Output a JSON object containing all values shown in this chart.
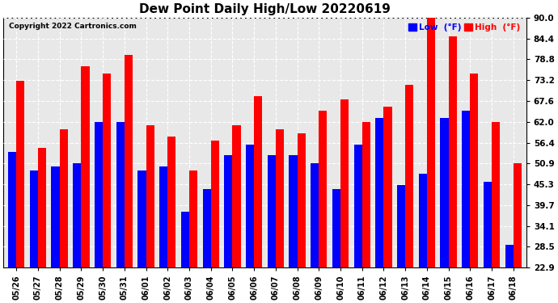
{
  "title": "Dew Point Daily High/Low 20220619",
  "copyright": "Copyright 2022 Cartronics.com",
  "legend_low": "Low  (°F)",
  "legend_high": "High  (°F)",
  "dates": [
    "05/26",
    "05/27",
    "05/28",
    "05/29",
    "05/30",
    "05/31",
    "06/01",
    "06/02",
    "06/03",
    "06/04",
    "06/05",
    "06/06",
    "06/07",
    "06/08",
    "06/09",
    "06/10",
    "06/11",
    "06/12",
    "06/13",
    "06/14",
    "06/15",
    "06/16",
    "06/17",
    "06/18"
  ],
  "low_values": [
    54,
    49,
    50,
    51,
    62,
    62,
    49,
    50,
    38,
    44,
    53,
    56,
    53,
    53,
    51,
    44,
    56,
    63,
    45,
    48,
    63,
    65,
    46,
    29
  ],
  "high_values": [
    73,
    55,
    60,
    77,
    75,
    80,
    61,
    58,
    49,
    57,
    61,
    69,
    60,
    59,
    65,
    68,
    62,
    66,
    72,
    90,
    85,
    75,
    62,
    51
  ],
  "ylim": [
    22.9,
    90.0
  ],
  "ymin": 22.9,
  "yticks": [
    22.9,
    28.5,
    34.1,
    39.7,
    45.3,
    50.9,
    56.4,
    62.0,
    67.6,
    73.2,
    78.8,
    84.4,
    90.0
  ],
  "bar_color_low": "#0000ff",
  "bar_color_high": "#ff0000",
  "background_color": "#ffffff",
  "plot_bg_color": "#e8e8e8",
  "grid_color": "#ffffff",
  "title_color": "#000000",
  "copyright_color": "#000000"
}
